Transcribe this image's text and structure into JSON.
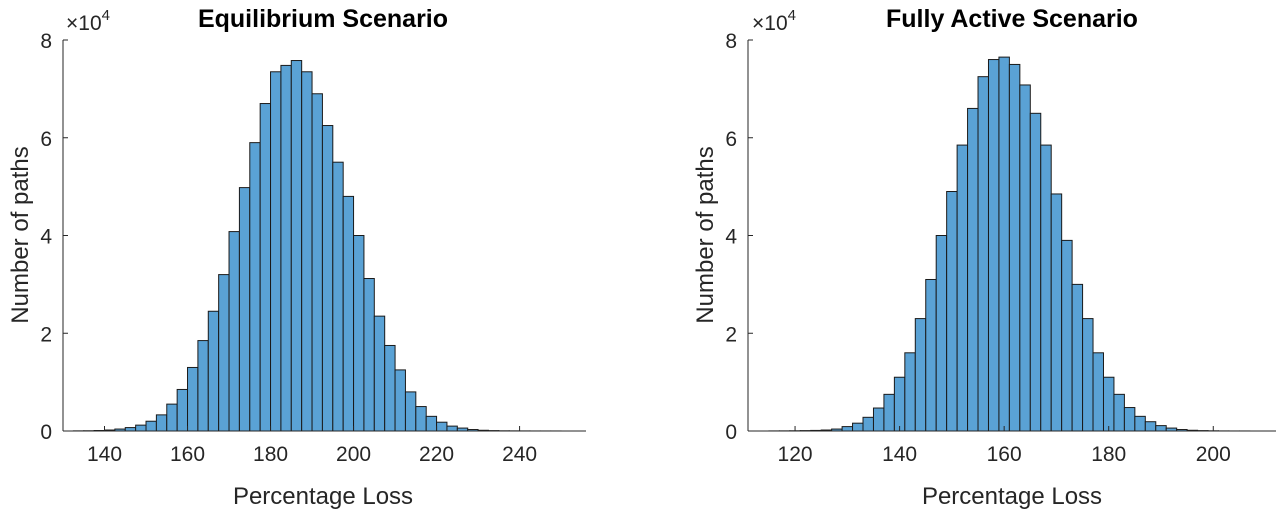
{
  "bar_color": "#5aa2d5",
  "edge_color": "#1a1a1a",
  "chart_data": [
    {
      "type": "bar",
      "title": "Equilibrium Scenario",
      "xlabel": "Percentage Loss",
      "ylabel": "Number of paths",
      "y_multiplier_label": "×10",
      "y_multiplier_exponent": "4",
      "xlim": [
        130,
        256
      ],
      "ylim": [
        0,
        8
      ],
      "xticks": [
        140,
        160,
        180,
        200,
        220,
        240
      ],
      "yticks": [
        0,
        2,
        4,
        6,
        8
      ],
      "grid": false,
      "bin_start": 132.5,
      "bin_width": 2.5,
      "values": [
        0.003,
        0.005,
        0.01,
        0.02,
        0.04,
        0.07,
        0.12,
        0.2,
        0.33,
        0.55,
        0.85,
        1.3,
        1.85,
        2.45,
        3.2,
        4.08,
        4.98,
        5.9,
        6.7,
        7.35,
        7.48,
        7.58,
        7.35,
        6.9,
        6.25,
        5.5,
        4.8,
        4.0,
        3.12,
        2.35,
        1.75,
        1.25,
        0.8,
        0.5,
        0.3,
        0.18,
        0.1,
        0.06,
        0.03,
        0.015,
        0.008,
        0.004,
        0.003,
        0.002,
        0.001,
        0.001,
        0.001
      ]
    },
    {
      "type": "bar",
      "title": "Fully Active Scenario",
      "xlabel": "Percentage Loss",
      "ylabel": "Number of paths",
      "y_multiplier_label": "×10",
      "y_multiplier_exponent": "4",
      "xlim": [
        111,
        212
      ],
      "ylim": [
        0,
        8
      ],
      "xticks": [
        120,
        140,
        160,
        180,
        200
      ],
      "yticks": [
        0,
        2,
        4,
        6,
        8
      ],
      "grid": false,
      "bin_start": 115,
      "bin_width": 2,
      "values": [
        0.002,
        0.003,
        0.005,
        0.008,
        0.012,
        0.02,
        0.04,
        0.09,
        0.16,
        0.28,
        0.47,
        0.75,
        1.1,
        1.6,
        2.3,
        3.1,
        4.0,
        4.9,
        5.85,
        6.6,
        7.25,
        7.6,
        7.65,
        7.5,
        7.08,
        6.5,
        5.85,
        4.85,
        3.9,
        3.0,
        2.3,
        1.6,
        1.1,
        0.75,
        0.48,
        0.3,
        0.19,
        0.11,
        0.06,
        0.03,
        0.015,
        0.008,
        0.004,
        0.002,
        0.001,
        0.001
      ]
    }
  ]
}
